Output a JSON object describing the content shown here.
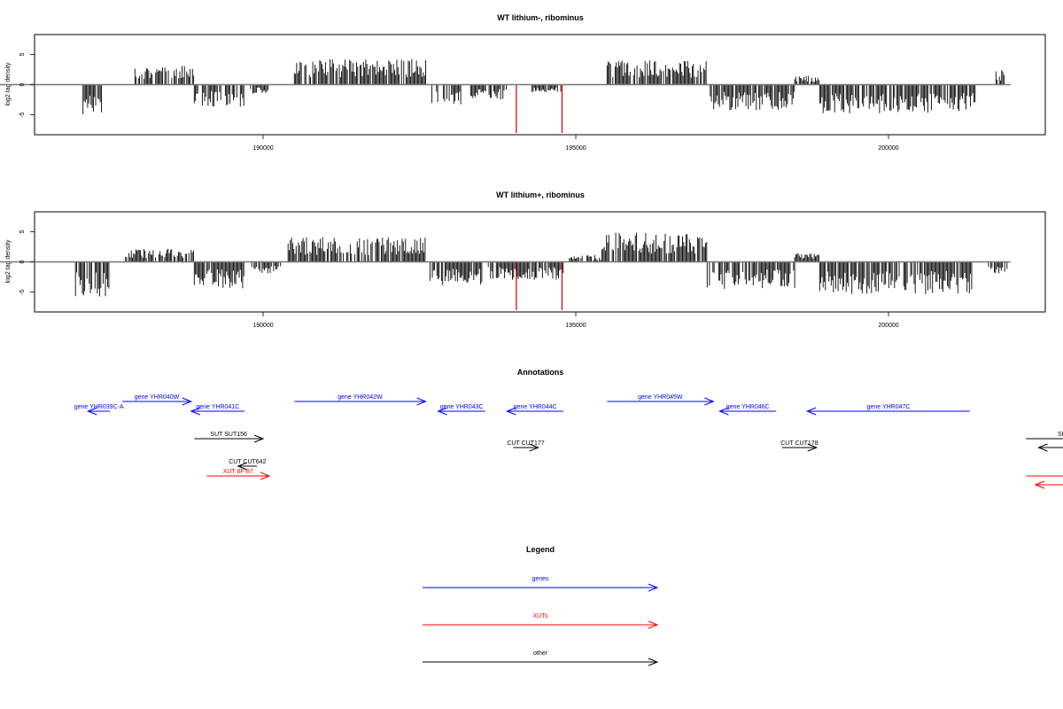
{
  "chart_data": [
    {
      "type": "bar",
      "title": "WT lithium-, ribominus",
      "ylabel": "log2 tag density",
      "xlim": [
        187000,
        202000
      ],
      "ylim": [
        -8,
        8
      ],
      "x_ticks": [
        "190000",
        "195000",
        "200000"
      ],
      "x_tick_values": [
        190000,
        195000,
        200000
      ],
      "y_ticks": [
        "-5",
        "0",
        "5"
      ],
      "y_tick_values": [
        -5,
        0,
        5
      ],
      "baseline_range": [
        187000,
        201950
      ],
      "series": [
        {
          "color": "#000000",
          "segments": [
            {
              "start": 187120,
              "end": 187430,
              "level": -4.5
            },
            {
              "start": 187950,
              "end": 188900,
              "level": 2.6
            },
            {
              "start": 188900,
              "end": 189700,
              "level": -3.0
            },
            {
              "start": 189800,
              "end": 190100,
              "level": -1.2
            },
            {
              "start": 190500,
              "end": 192600,
              "level": 3.4
            },
            {
              "start": 192700,
              "end": 193200,
              "level": -2.6
            },
            {
              "start": 193300,
              "end": 193900,
              "level": -2.0
            },
            {
              "start": 194300,
              "end": 194800,
              "level": -1.0
            },
            {
              "start": 195500,
              "end": 197100,
              "level": 3.3
            },
            {
              "start": 197150,
              "end": 198500,
              "level": -3.4
            },
            {
              "start": 198500,
              "end": 198900,
              "level": 1.3
            },
            {
              "start": 198900,
              "end": 201400,
              "level": -3.8
            },
            {
              "start": 201700,
              "end": 201850,
              "level": 2.0
            }
          ]
        },
        {
          "color": "#cc0000",
          "spikes": [
            {
              "x": 194050,
              "y": -8.0
            },
            {
              "x": 194780,
              "y": -8.0
            }
          ]
        }
      ]
    },
    {
      "type": "bar",
      "title": "WT lithium+, ribominus",
      "ylabel": "log2 tag density",
      "xlim": [
        187000,
        202000
      ],
      "ylim": [
        -8,
        8
      ],
      "x_ticks": [
        "190000",
        "195000",
        "200000"
      ],
      "x_tick_values": [
        190000,
        195000,
        200000
      ],
      "y_ticks": [
        "-5",
        "0",
        "5"
      ],
      "y_tick_values": [
        -5,
        0,
        5
      ],
      "baseline_range": [
        187000,
        201950
      ],
      "series": [
        {
          "color": "#000000",
          "segments": [
            {
              "start": 187000,
              "end": 187550,
              "level": -4.6
            },
            {
              "start": 187800,
              "end": 188900,
              "level": 1.8
            },
            {
              "start": 188900,
              "end": 189700,
              "level": -3.5
            },
            {
              "start": 189800,
              "end": 190300,
              "level": -1.5
            },
            {
              "start": 190400,
              "end": 192600,
              "level": 3.3
            },
            {
              "start": 192650,
              "end": 193500,
              "level": -3.2
            },
            {
              "start": 193600,
              "end": 194800,
              "level": -2.4
            },
            {
              "start": 194900,
              "end": 195400,
              "level": 0.9
            },
            {
              "start": 195400,
              "end": 197100,
              "level": 3.9
            },
            {
              "start": 197100,
              "end": 198500,
              "level": -3.6
            },
            {
              "start": 198500,
              "end": 198900,
              "level": 1.2
            },
            {
              "start": 198900,
              "end": 201400,
              "level": -4.3
            },
            {
              "start": 201600,
              "end": 201900,
              "level": -1.6
            }
          ]
        },
        {
          "color": "#cc0000",
          "spikes": [
            {
              "x": 194050,
              "y": -8.0
            },
            {
              "x": 194780,
              "y": -8.0
            }
          ]
        }
      ]
    }
  ],
  "annotations": {
    "title": "Annotations",
    "features": [
      {
        "label": "gene YHR039C-A",
        "color": "#0000ff",
        "start": 187200,
        "end": 187550,
        "strand": "-",
        "row": 1
      },
      {
        "label": "gene YHR040W",
        "color": "#0000ff",
        "start": 187750,
        "end": 188850,
        "strand": "+",
        "row": 0
      },
      {
        "label": "gene YHR041C",
        "color": "#0000ff",
        "start": 188850,
        "end": 189700,
        "strand": "-",
        "row": 1
      },
      {
        "label": "gene YHR042W",
        "color": "#0000ff",
        "start": 190500,
        "end": 192600,
        "strand": "+",
        "row": 0
      },
      {
        "label": "gene YHR043C",
        "color": "#0000ff",
        "start": 192800,
        "end": 193550,
        "strand": "-",
        "row": 1
      },
      {
        "label": "gene YHR044C",
        "color": "#0000ff",
        "start": 193900,
        "end": 194800,
        "strand": "-",
        "row": 1
      },
      {
        "label": "gene YHR045W",
        "color": "#0000ff",
        "start": 195500,
        "end": 197200,
        "strand": "+",
        "row": 0
      },
      {
        "label": "gene YHR046C",
        "color": "#0000ff",
        "start": 197300,
        "end": 198200,
        "strand": "-",
        "row": 1
      },
      {
        "label": "gene YHR047C",
        "color": "#0000ff",
        "start": 198700,
        "end": 201300,
        "strand": "-",
        "row": 1
      },
      {
        "label": "SUT SUT156",
        "color": "#000000",
        "start": 188900,
        "end": 190000,
        "strand": "+",
        "row": 3
      },
      {
        "label": "CUT CUT642",
        "color": "#000000",
        "start": 189600,
        "end": 189900,
        "strand": "-",
        "row": 5
      },
      {
        "label": "XUT 8F-87",
        "color": "#ff0000",
        "start": 189100,
        "end": 190100,
        "strand": "+",
        "row": 6
      },
      {
        "label": "CUT CUT177",
        "color": "#000000",
        "start": 194000,
        "end": 194400,
        "strand": "+",
        "row": 4
      },
      {
        "label": "CUT CUT178",
        "color": "#000000",
        "start": 198300,
        "end": 198850,
        "strand": "+",
        "row": 4
      },
      {
        "label": "SUT S",
        "color": "#000000",
        "start": 202200,
        "end": 203500,
        "strand": "+",
        "row": 3
      },
      {
        "label": "",
        "color": "#000000",
        "start": 202400,
        "end": 203500,
        "strand": "-",
        "row": 4
      },
      {
        "label": "",
        "color": "#ff0000",
        "start": 202200,
        "end": 203500,
        "strand": "+",
        "row": 7
      },
      {
        "label": "",
        "color": "#ff0000",
        "start": 202350,
        "end": 203500,
        "strand": "-",
        "row": 8
      }
    ]
  },
  "legend": {
    "title": "Legend",
    "entries": [
      {
        "label": "genes",
        "color": "#0000ff"
      },
      {
        "label": "XUTs",
        "color": "#ff0000"
      },
      {
        "label": "other",
        "color": "#000000"
      }
    ]
  }
}
